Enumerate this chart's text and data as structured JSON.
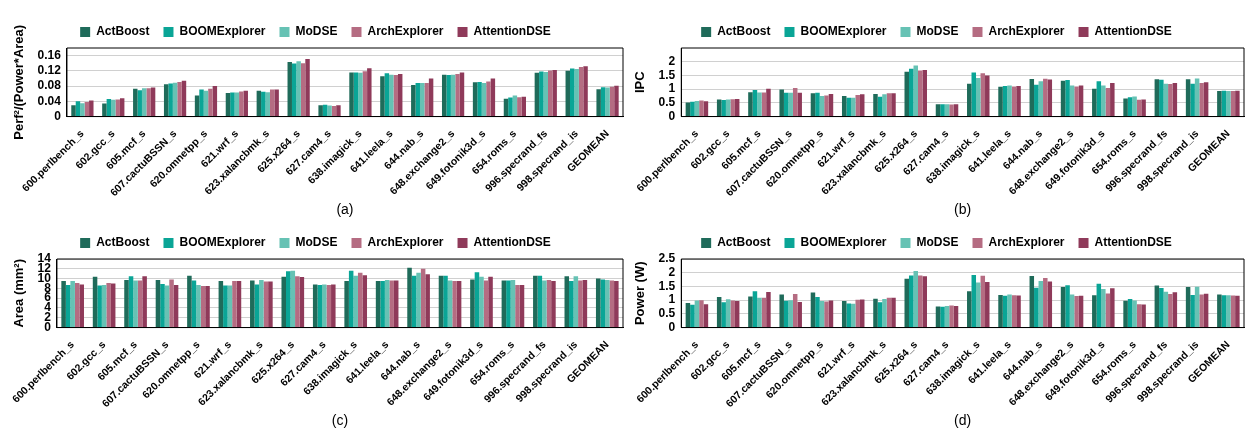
{
  "chart_data": [
    {
      "type": "bar",
      "xlabel": "(a)",
      "ylabel": "Perf²/(Power*Area)",
      "categories": [
        "600.perlbench_s",
        "602.gcc_s",
        "605.mcf_s",
        "607.cactuBSSN_s",
        "620.omnetpp_s",
        "621.wrf_s",
        "623.xalancbmk_s",
        "625.x264_s",
        "627.cam4_s",
        "638.imagick_s",
        "641.leela_s",
        "644.nab_s",
        "648.exchange2_s",
        "649.fotonik3d_s",
        "654.roms_s",
        "996.specrand_fs",
        "998.specrand_is",
        "GEOMEAN"
      ],
      "series": [
        {
          "name": "ActBoost",
          "color": "#1f6b5a",
          "values": [
            0.03,
            0.034,
            0.073,
            0.085,
            0.055,
            0.062,
            0.068,
            0.143,
            0.03,
            0.116,
            0.106,
            0.083,
            0.11,
            0.09,
            0.047,
            0.115,
            0.12,
            0.072
          ]
        },
        {
          "name": "BOOMExplorer",
          "color": "#0aa596",
          "values": [
            0.04,
            0.046,
            0.069,
            0.087,
            0.071,
            0.063,
            0.065,
            0.139,
            0.031,
            0.116,
            0.114,
            0.088,
            0.109,
            0.091,
            0.05,
            0.118,
            0.126,
            0.077
          ]
        },
        {
          "name": "MoDSE",
          "color": "#66c2b4",
          "values": [
            0.035,
            0.044,
            0.074,
            0.089,
            0.068,
            0.063,
            0.064,
            0.145,
            0.029,
            0.115,
            0.11,
            0.088,
            0.11,
            0.088,
            0.055,
            0.117,
            0.125,
            0.076
          ]
        },
        {
          "name": "ArchExplorer",
          "color": "#b56c82",
          "values": [
            0.038,
            0.045,
            0.074,
            0.091,
            0.073,
            0.066,
            0.071,
            0.14,
            0.028,
            0.119,
            0.109,
            0.088,
            0.112,
            0.092,
            0.051,
            0.121,
            0.13,
            0.078
          ]
        },
        {
          "name": "AttentionDSE",
          "color": "#8f3a5a",
          "values": [
            0.042,
            0.048,
            0.076,
            0.094,
            0.08,
            0.068,
            0.071,
            0.151,
            0.03,
            0.127,
            0.112,
            0.1,
            0.116,
            0.1,
            0.052,
            0.122,
            0.132,
            0.081
          ]
        }
      ],
      "ylim": [
        0,
        0.18
      ],
      "yticks": [
        0,
        0.04,
        0.08,
        0.12,
        0.16
      ],
      "grid": "y",
      "legend": "top"
    },
    {
      "type": "bar",
      "xlabel": "(b)",
      "ylabel": "IPC",
      "categories": [
        "600.perlbench_s",
        "602.gcc_s",
        "605.mcf_s",
        "607.cactuBSSN_s",
        "620.omnetpp_s",
        "621.wrf_s",
        "623.xalancbmk_s",
        "625.x264_s",
        "627.cam4_s",
        "638.imagick_s",
        "641.leela_s",
        "644.nab_s",
        "648.exchange2_s",
        "649.fotonik3d_s",
        "654.roms_s",
        "996.specrand_fs",
        "998.specrand_is",
        "GEOMEAN"
      ],
      "series": [
        {
          "name": "ActBoost",
          "color": "#1f6b5a",
          "values": [
            0.51,
            0.62,
            0.89,
            0.99,
            0.85,
            0.75,
            0.82,
            1.63,
            0.45,
            1.2,
            1.09,
            1.37,
            1.31,
            1.01,
            0.66,
            1.36,
            1.36,
            0.93
          ]
        },
        {
          "name": "BOOMExplorer",
          "color": "#0aa596",
          "values": [
            0.54,
            0.6,
            0.97,
            0.87,
            0.87,
            0.69,
            0.72,
            1.74,
            0.45,
            1.61,
            1.11,
            1.16,
            1.33,
            1.29,
            0.7,
            1.34,
            1.2,
            0.94
          ]
        },
        {
          "name": "MoDSE",
          "color": "#66c2b4",
          "values": [
            0.57,
            0.62,
            0.88,
            0.87,
            0.75,
            0.69,
            0.81,
            1.86,
            0.45,
            1.41,
            1.13,
            1.29,
            1.13,
            1.13,
            0.73,
            1.2,
            1.39,
            0.93
          ]
        },
        {
          "name": "ArchExplorer",
          "color": "#b56c82",
          "values": [
            0.59,
            0.63,
            0.88,
            1.04,
            0.77,
            0.79,
            0.85,
            1.68,
            0.44,
            1.58,
            1.1,
            1.38,
            1.1,
            1.04,
            0.61,
            1.19,
            1.22,
            0.93
          ]
        },
        {
          "name": "AttentionDSE",
          "color": "#8f3a5a",
          "values": [
            0.56,
            0.64,
            1.01,
            0.87,
            0.82,
            0.81,
            0.85,
            1.7,
            0.45,
            1.5,
            1.11,
            1.35,
            1.13,
            1.22,
            0.62,
            1.22,
            1.25,
            0.94
          ]
        }
      ],
      "ylim": [
        0,
        2.5
      ],
      "yticks": [
        0,
        0.5,
        1,
        1.5,
        2
      ],
      "grid": "y",
      "legend": "top"
    },
    {
      "type": "bar",
      "xlabel": "(c)",
      "ylabel": "Area (mm²)",
      "categories": [
        "600.perlbench_s",
        "602.gcc_s",
        "605.mcf_s",
        "607.cactuBSSN_s",
        "620.omnetpp_s",
        "621.wrf_s",
        "623.xalancbmk_s",
        "625.x264_s",
        "627.cam4_s",
        "638.imagick_s",
        "641.leela_s",
        "644.nab_s",
        "648.exchange2_s",
        "649.fotonik3d_s",
        "654.roms_s",
        "996.specrand_fs",
        "998.specrand_is",
        "GEOMEAN"
      ],
      "series": [
        {
          "name": "ActBoost",
          "color": "#1f6b5a",
          "values": [
            9.5,
            10.4,
            9.7,
            9.7,
            10.6,
            9.5,
            9.6,
            10.4,
            8.8,
            9.5,
            9.5,
            12.2,
            10.6,
            9.8,
            9.6,
            10.6,
            10.5,
            10.0
          ]
        },
        {
          "name": "BOOMExplorer",
          "color": "#0aa596",
          "values": [
            8.7,
            8.6,
            10.5,
            8.9,
            9.6,
            8.6,
            8.8,
            11.5,
            8.7,
            11.6,
            9.5,
            10.6,
            10.6,
            11.3,
            9.6,
            10.6,
            9.5,
            9.8
          ]
        },
        {
          "name": "MoDSE",
          "color": "#66c2b4",
          "values": [
            9.5,
            8.7,
            9.6,
            8.6,
            8.7,
            8.6,
            9.7,
            11.6,
            8.8,
            10.6,
            9.7,
            11.2,
            9.6,
            10.4,
            9.7,
            9.6,
            10.5,
            9.7
          ]
        },
        {
          "name": "ArchExplorer",
          "color": "#b56c82",
          "values": [
            9.1,
            9.1,
            9.6,
            9.8,
            8.5,
            9.5,
            9.4,
            10.5,
            8.7,
            11.2,
            9.6,
            12.0,
            9.5,
            9.6,
            8.7,
            9.7,
            9.6,
            9.6
          ]
        },
        {
          "name": "AttentionDSE",
          "color": "#8f3a5a",
          "values": [
            8.8,
            9.0,
            10.5,
            8.7,
            8.5,
            9.5,
            9.4,
            10.3,
            8.8,
            10.7,
            9.6,
            10.9,
            9.5,
            10.4,
            8.7,
            9.5,
            9.7,
            9.5
          ]
        }
      ],
      "ylim": [
        0,
        14
      ],
      "yticks": [
        0,
        2,
        4,
        6,
        8,
        10,
        12,
        14
      ],
      "grid": "y",
      "legend": "top"
    },
    {
      "type": "bar",
      "xlabel": "(d)",
      "ylabel": "Power (W)",
      "categories": [
        "600.perlbench_s",
        "602.gcc_s",
        "605.mcf_s",
        "607.cactuBSSN_s",
        "620.omnetpp_s",
        "621.wrf_s",
        "623.xalancbmk_s",
        "625.x264_s",
        "627.cam4_s",
        "638.imagick_s",
        "641.leela_s",
        "644.nab_s",
        "648.exchange2_s",
        "649.fotonik3d_s",
        "654.roms_s",
        "996.specrand_fs",
        "998.specrand_is",
        "GEOMEAN"
      ],
      "series": [
        {
          "name": "ActBoost",
          "color": "#1f6b5a",
          "values": [
            0.9,
            1.11,
            1.13,
            1.21,
            1.28,
            0.97,
            1.05,
            1.78,
            0.77,
            1.32,
            1.19,
            1.88,
            1.48,
            1.18,
            0.98,
            1.53,
            1.48,
            1.21
          ]
        },
        {
          "name": "BOOMExplorer",
          "color": "#0aa596",
          "values": [
            0.83,
            0.92,
            1.32,
            0.98,
            1.11,
            0.88,
            0.92,
            1.9,
            0.76,
            1.92,
            1.16,
            1.45,
            1.54,
            1.6,
            1.04,
            1.44,
            1.19,
            1.18
          ]
        },
        {
          "name": "MoDSE",
          "color": "#66c2b4",
          "values": [
            0.99,
            1.03,
            1.09,
            1.0,
            0.97,
            0.87,
            1.04,
            2.06,
            0.79,
            1.64,
            1.21,
            1.7,
            1.21,
            1.41,
            0.99,
            1.31,
            1.49,
            1.18
          ]
        },
        {
          "name": "ArchExplorer",
          "color": "#b56c82",
          "values": [
            1.0,
            0.99,
            1.09,
            1.22,
            0.95,
            1.01,
            1.09,
            1.9,
            0.8,
            1.89,
            1.18,
            1.81,
            1.15,
            1.24,
            0.85,
            1.22,
            1.21,
            1.17
          ]
        },
        {
          "name": "AttentionDSE",
          "color": "#8f3a5a",
          "values": [
            0.85,
            0.97,
            1.3,
            0.93,
            0.99,
            1.02,
            1.09,
            1.87,
            0.79,
            1.66,
            1.17,
            1.68,
            1.16,
            1.43,
            0.84,
            1.29,
            1.23,
            1.16
          ]
        }
      ],
      "ylim": [
        0,
        2.5
      ],
      "yticks": [
        0,
        0.5,
        1,
        1.5,
        2,
        2.5
      ],
      "grid": "y",
      "legend": "top"
    }
  ]
}
